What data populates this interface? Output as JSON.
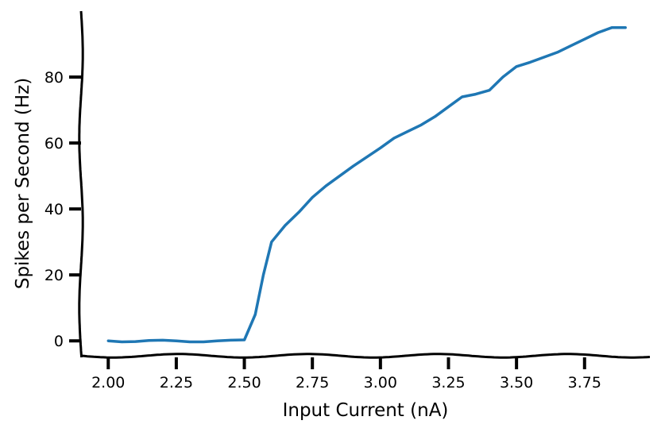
{
  "chart_data": {
    "type": "line",
    "title": "",
    "xlabel": "Input Current (nA)",
    "ylabel": "Spikes per Second (Hz)",
    "xlim": [
      1.9,
      3.99
    ],
    "ylim": [
      -5,
      100
    ],
    "xticks": [
      2.0,
      2.25,
      2.5,
      2.75,
      3.0,
      3.25,
      3.5,
      3.75
    ],
    "xtick_labels": [
      "2.00",
      "2.25",
      "2.50",
      "2.75",
      "3.00",
      "3.25",
      "3.50",
      "3.75"
    ],
    "yticks": [
      0,
      20,
      40,
      60,
      80
    ],
    "ytick_labels": [
      "0",
      "20",
      "40",
      "60",
      "80"
    ],
    "grid": false,
    "legend": "none",
    "style": "xkcd",
    "series": [
      {
        "color": "#1f77b4",
        "x": [
          2.0,
          2.05,
          2.1,
          2.15,
          2.2,
          2.25,
          2.3,
          2.35,
          2.4,
          2.45,
          2.5,
          2.54,
          2.57,
          2.6,
          2.65,
          2.7,
          2.75,
          2.8,
          2.9,
          3.0,
          3.05,
          3.1,
          3.15,
          3.2,
          3.25,
          3.3,
          3.35,
          3.4,
          3.45,
          3.5,
          3.55,
          3.6,
          3.65,
          3.7,
          3.75,
          3.8,
          3.85,
          3.9
        ],
        "y": [
          0,
          -0.3,
          -0.2,
          0.1,
          0.2,
          0,
          -0.3,
          -0.3,
          0,
          0.2,
          0.3,
          8,
          20,
          30,
          35,
          39,
          43.5,
          47,
          53,
          58.5,
          61.5,
          63.5,
          65.5,
          68,
          71,
          74,
          74.8,
          76,
          80,
          83.2,
          84.5,
          86,
          87.5,
          89.5,
          91.5,
          93.5,
          95,
          95
        ]
      }
    ]
  }
}
